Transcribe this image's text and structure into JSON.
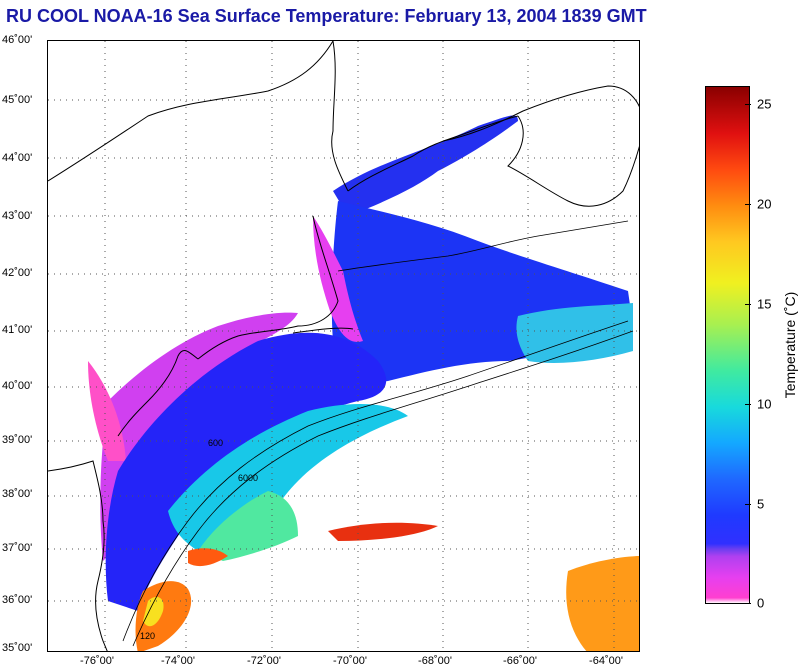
{
  "title": "RU COOL  NOAA-16  Sea Surface Temperature:  February 13, 2004 1839 GMT",
  "map": {
    "lat_labels": [
      "46˚00'",
      "45˚00'",
      "44˚00'",
      "43˚00'",
      "42˚00'",
      "41˚00'",
      "40˚00'",
      "39˚00'",
      "38˚00'",
      "37˚00'",
      "36˚00'",
      "35˚00'"
    ],
    "lon_labels": [
      "-76˚00'",
      "-74˚00'",
      "-72˚00'",
      "-70˚00'",
      "-68˚00'",
      "-66˚00'",
      "-64˚00'"
    ],
    "isobath_labels": [
      "120",
      "600",
      "6000"
    ],
    "colors": {
      "land_outline": "#000000",
      "grid": "#555555",
      "cloud_mask": "#ffffff"
    }
  },
  "colorbar": {
    "label": "Temperature (˚C)",
    "ticks": [
      "25",
      "20",
      "15",
      "10",
      "5",
      "0"
    ],
    "range": [
      0,
      26
    ]
  }
}
